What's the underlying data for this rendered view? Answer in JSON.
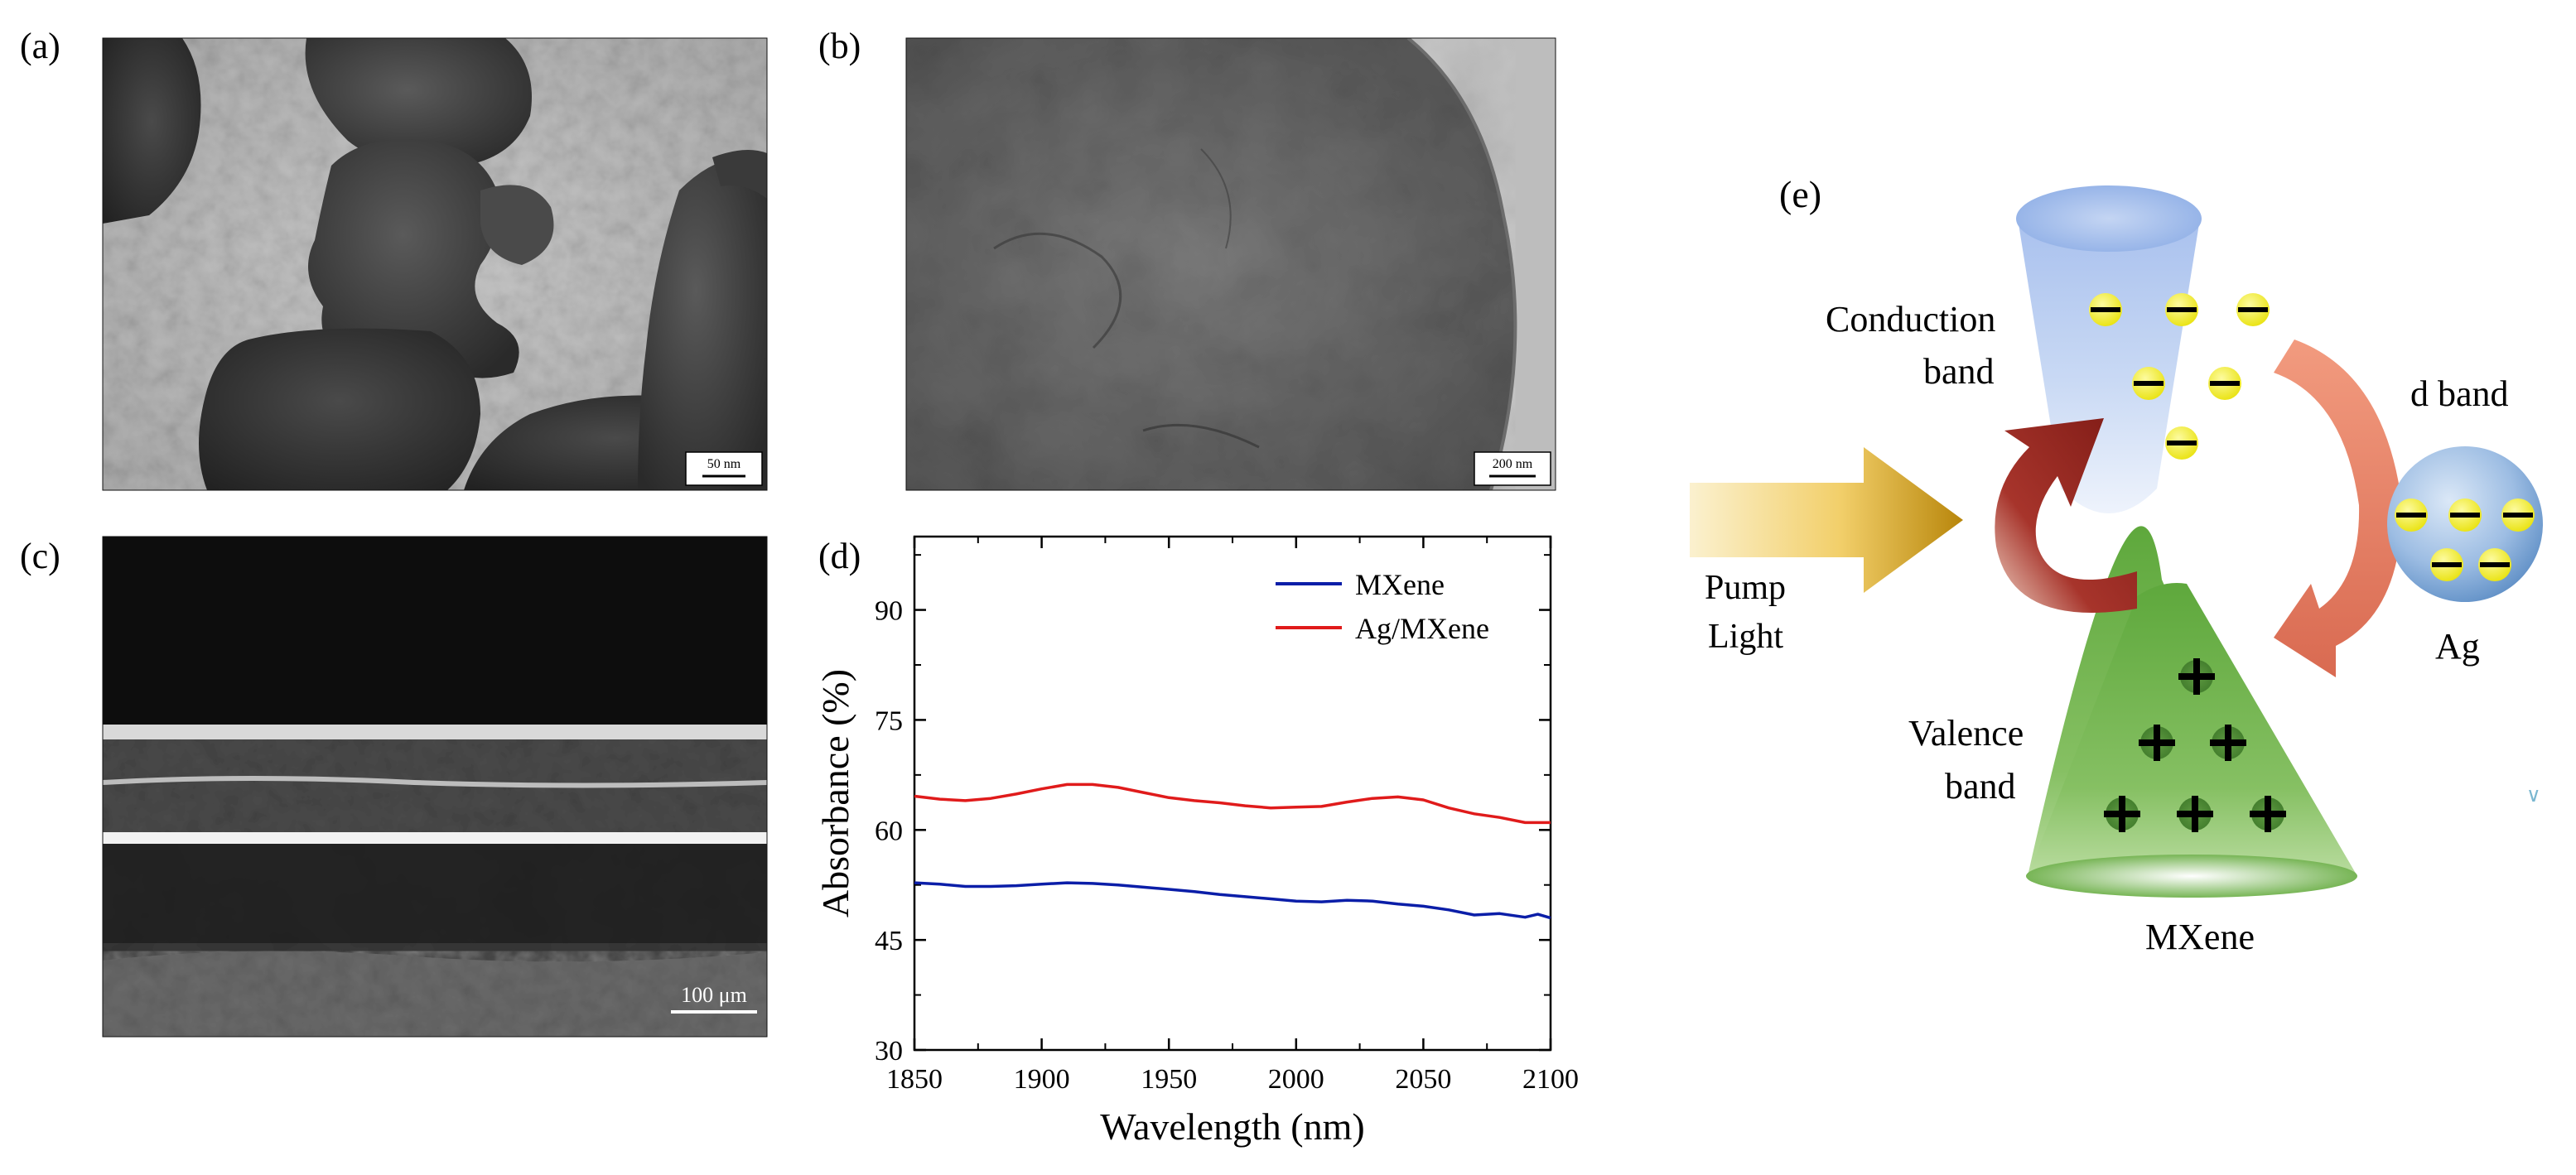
{
  "panels": {
    "a": {
      "label": "(a)",
      "scale_bar": "50 nm"
    },
    "b": {
      "label": "(b)",
      "scale_bar": "200 nm"
    },
    "c": {
      "label": "(c)",
      "scale_bar": "100 μm"
    },
    "d": {
      "label": "(d)"
    },
    "e": {
      "label": "(e)",
      "conduction_band": [
        "Conduction",
        "band"
      ],
      "valence_band": [
        "Valence",
        "band"
      ],
      "d_band": "d band",
      "ag": "Ag",
      "mxene": "MXene",
      "pump_light": [
        "Pump",
        "Light"
      ],
      "stray_mark": "∨"
    }
  },
  "colors": {
    "mxene_line": "#0b1ea8",
    "ag_mxene_line": "#e01b1b",
    "cone_top": "#8eaee6",
    "valence_green": "#5ea83c",
    "ag_sphere": "#7aa6d6",
    "electron": "#f2ee1c",
    "arrow_dark": "#8b1f1a",
    "arrow_light": "#e8836a",
    "pump_gold": "#d7a520"
  },
  "chart_data": {
    "type": "line",
    "title": "",
    "xlabel": "Wavelength (nm)",
    "ylabel": "Absorbance (%)",
    "xlim": [
      1850,
      2100
    ],
    "ylim": [
      30,
      100
    ],
    "xticks": [
      1850,
      1900,
      1950,
      2000,
      2050,
      2100
    ],
    "yticks": [
      30,
      45,
      60,
      75,
      90
    ],
    "legend_position": "top-right",
    "series": [
      {
        "name": "MXene",
        "color": "#0b1ea8",
        "x": [
          1850,
          1860,
          1870,
          1880,
          1890,
          1900,
          1910,
          1920,
          1930,
          1940,
          1950,
          1960,
          1970,
          1980,
          1990,
          2000,
          2010,
          2020,
          2030,
          2040,
          2050,
          2060,
          2070,
          2080,
          2090,
          2095,
          2100
        ],
        "y": [
          52.8,
          52.6,
          52.3,
          52.3,
          52.4,
          52.6,
          52.8,
          52.7,
          52.5,
          52.2,
          51.9,
          51.6,
          51.2,
          50.9,
          50.6,
          50.3,
          50.2,
          50.4,
          50.3,
          49.9,
          49.6,
          49.1,
          48.4,
          48.6,
          48.1,
          48.5,
          48.0
        ]
      },
      {
        "name": "Ag/MXene",
        "color": "#e01b1b",
        "x": [
          1850,
          1860,
          1870,
          1880,
          1890,
          1900,
          1910,
          1920,
          1930,
          1940,
          1950,
          1960,
          1970,
          1980,
          1990,
          2000,
          2010,
          2020,
          2030,
          2040,
          2050,
          2060,
          2070,
          2080,
          2090,
          2100
        ],
        "y": [
          64.6,
          64.2,
          64.0,
          64.3,
          64.9,
          65.6,
          66.2,
          66.2,
          65.8,
          65.1,
          64.4,
          64.0,
          63.7,
          63.3,
          63.0,
          63.1,
          63.2,
          63.8,
          64.3,
          64.5,
          64.1,
          63.0,
          62.2,
          61.7,
          61.0,
          61.0
        ]
      }
    ]
  }
}
